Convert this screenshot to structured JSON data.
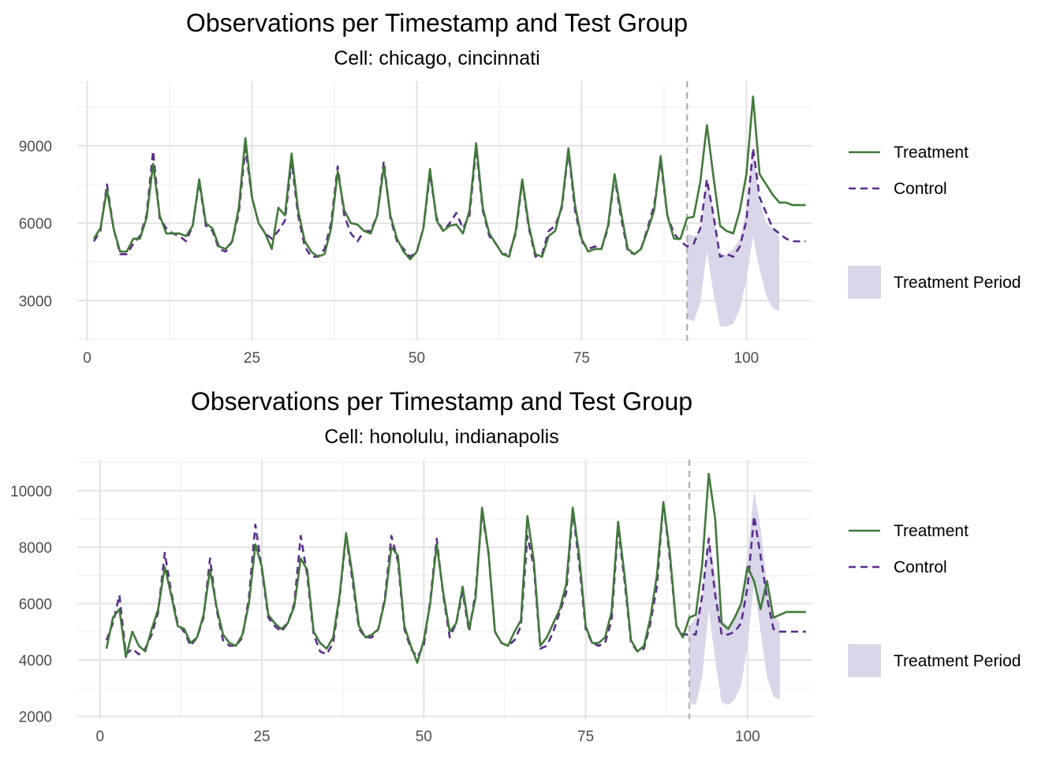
{
  "colors": {
    "treatment": "#417a3a",
    "control": "#5b2c8e",
    "band": "#d9d6e9",
    "vline": "#b3b3b3",
    "grid_major": "#e5e5e5",
    "grid_minor": "#f0f0f0"
  },
  "chart_data": [
    {
      "type": "line",
      "title": "Observations per Timestamp and Test Group",
      "subtitle": "Cell: chicago, cincinnati",
      "xlabel": "",
      "ylabel": "",
      "xlim": [
        -1.5,
        110
      ],
      "ylim": [
        1450,
        11500
      ],
      "xticks": [
        0,
        25,
        50,
        75,
        100
      ],
      "yticks": [
        3000,
        6000,
        9000
      ],
      "grid": true,
      "treatment_start": 91,
      "legend": {
        "placement": "right",
        "items": [
          {
            "label": "Treatment",
            "style": "solid"
          },
          {
            "label": "Control",
            "style": "dashed"
          },
          {
            "label": "Treatment Period",
            "style": "band"
          }
        ]
      },
      "x_start": 1,
      "series": [
        {
          "name": "Treatment",
          "values": [
            5400,
            5800,
            7300,
            5800,
            4900,
            4900,
            5400,
            5400,
            6200,
            8300,
            6300,
            5600,
            5600,
            5600,
            5500,
            5900,
            7700,
            6000,
            5800,
            5100,
            5000,
            5300,
            6600,
            9300,
            7000,
            6000,
            5600,
            5000,
            6600,
            6300,
            8700,
            6500,
            5300,
            4900,
            4700,
            4800,
            5800,
            8000,
            6500,
            6000,
            5950,
            5700,
            5600,
            6300,
            8200,
            6300,
            5400,
            4900,
            4600,
            4900,
            5800,
            8100,
            6100,
            5700,
            5900,
            5950,
            5600,
            6500,
            9100,
            6600,
            5600,
            5200,
            4800,
            4700,
            5700,
            7700,
            5900,
            4800,
            4700,
            5500,
            5700,
            6700,
            8900,
            6700,
            5400,
            4900,
            5000,
            5000,
            5900,
            7900,
            6400,
            5000,
            4800,
            5000,
            5700,
            6500,
            8600,
            6300,
            5400,
            5400,
            6200,
            6250,
            7600,
            9800,
            7800,
            5900,
            5700,
            5600,
            6500,
            7900,
            10900,
            7900,
            7500,
            7100,
            6800,
            6800,
            6700,
            6700,
            6700
          ]
        },
        {
          "name": "Control",
          "values": [
            5300,
            5700,
            7500,
            5800,
            4800,
            4800,
            5200,
            5500,
            6300,
            8800,
            6200,
            5800,
            5600,
            5500,
            5300,
            5900,
            7600,
            5900,
            5700,
            5000,
            4900,
            5300,
            6400,
            8900,
            7000,
            6000,
            5600,
            5400,
            5700,
            6100,
            8400,
            6300,
            5100,
            4700,
            4700,
            5000,
            6000,
            8200,
            6300,
            5600,
            5300,
            5700,
            5700,
            6300,
            8400,
            6200,
            5300,
            5000,
            4700,
            4900,
            5800,
            7900,
            6200,
            5700,
            6000,
            6400,
            5800,
            6300,
            8900,
            6500,
            5500,
            5200,
            4800,
            4800,
            5600,
            7600,
            5800,
            4700,
            4800,
            5700,
            5900,
            6600,
            8800,
            6500,
            5300,
            5000,
            5100,
            5000,
            5800,
            7800,
            6200,
            4900,
            4800,
            5000,
            5800,
            6700,
            8400,
            6300,
            5600,
            5300,
            5100,
            5200,
            5800,
            7700,
            6300,
            4700,
            4800,
            4700,
            5100,
            6100,
            8900,
            7000,
            6400,
            5800,
            5600,
            5400,
            5300,
            5300,
            5300
          ]
        },
        {
          "name": "Treatment Period",
          "type": "band",
          "x": [
            91,
            92,
            93,
            94,
            95,
            96,
            97,
            98,
            99,
            100,
            101,
            102,
            103,
            104,
            105
          ],
          "lower": [
            2300,
            2200,
            2900,
            4900,
            3300,
            2000,
            2000,
            2100,
            2700,
            3800,
            5500,
            4200,
            3200,
            2700,
            2600
          ],
          "upper": [
            5600,
            5500,
            5600,
            7700,
            6500,
            4700,
            4800,
            5000,
            5400,
            6500,
            8900,
            6900,
            6000,
            5800,
            5500
          ]
        }
      ]
    },
    {
      "type": "line",
      "title": "Observations per Timestamp and Test Group",
      "subtitle": "Cell: honolulu, indianapolis",
      "xlabel": "",
      "ylabel": "",
      "xlim": [
        -3.5,
        110
      ],
      "ylim": [
        1900,
        11100
      ],
      "xticks": [
        0,
        25,
        50,
        75,
        100
      ],
      "yticks": [
        2000,
        4000,
        6000,
        8000,
        10000
      ],
      "grid": true,
      "treatment_start": 91,
      "legend": {
        "placement": "right",
        "items": [
          {
            "label": "Treatment",
            "style": "solid"
          },
          {
            "label": "Control",
            "style": "dashed"
          },
          {
            "label": "Treatment Period",
            "style": "band"
          }
        ]
      },
      "x_start": 1,
      "series": [
        {
          "name": "Treatment",
          "values": [
            4400,
            5500,
            5800,
            4100,
            5000,
            4500,
            4300,
            5100,
            5800,
            7300,
            6300,
            5200,
            5100,
            4600,
            4800,
            5600,
            7200,
            5900,
            4900,
            4600,
            4500,
            4900,
            6000,
            8100,
            7300,
            5600,
            5300,
            5100,
            5300,
            5900,
            7600,
            7200,
            5000,
            4600,
            4400,
            4800,
            6300,
            8500,
            7000,
            5200,
            4800,
            4900,
            5100,
            6100,
            8000,
            7700,
            5200,
            4500,
            3900,
            4700,
            6000,
            8100,
            6400,
            5000,
            5300,
            6600,
            5100,
            6200,
            9400,
            7800,
            5000,
            4600,
            4500,
            5000,
            5400,
            9100,
            7500,
            4500,
            4800,
            5300,
            5800,
            6700,
            9400,
            7700,
            5200,
            4600,
            4600,
            4800,
            5700,
            8900,
            7000,
            4700,
            4300,
            4500,
            5500,
            7000,
            9600,
            7800,
            5200,
            4800,
            5500,
            5600,
            7400,
            10600,
            9000,
            5300,
            5100,
            5500,
            6000,
            7300,
            6800,
            5800,
            6800,
            5500,
            5600,
            5700,
            5700,
            5700,
            5700
          ]
        },
        {
          "name": "Control",
          "values": [
            4700,
            5300,
            6300,
            4200,
            4400,
            4200,
            4400,
            4900,
            5700,
            7800,
            6400,
            5300,
            5000,
            4500,
            4800,
            5500,
            7600,
            5800,
            4700,
            4500,
            4500,
            4800,
            6200,
            8800,
            7200,
            5500,
            5200,
            5000,
            5300,
            6000,
            8400,
            7000,
            4900,
            4300,
            4200,
            4600,
            6200,
            8400,
            6800,
            5100,
            4800,
            4800,
            5100,
            6200,
            8400,
            7500,
            5100,
            4400,
            4100,
            4500,
            6100,
            8300,
            6300,
            4800,
            5300,
            6400,
            5000,
            6400,
            9200,
            7800,
            5000,
            4600,
            4500,
            4700,
            5200,
            8400,
            7300,
            4400,
            4500,
            5000,
            5700,
            6400,
            9300,
            7400,
            5100,
            4600,
            4500,
            4600,
            5400,
            8700,
            6800,
            4600,
            4300,
            4400,
            5300,
            6600,
            9600,
            7600,
            5200,
            4900,
            4900,
            4900,
            6300,
            8300,
            6300,
            4900,
            4900,
            5000,
            5300,
            6600,
            9100,
            7700,
            6200,
            5100,
            5000,
            5000,
            5000,
            5000,
            5000
          ]
        },
        {
          "name": "Treatment Period",
          "type": "band",
          "x": [
            91,
            92,
            93,
            94,
            95,
            96,
            97,
            98,
            99,
            100,
            101,
            102,
            103,
            104,
            105
          ],
          "lower": [
            2500,
            2400,
            3400,
            5800,
            4000,
            2500,
            2400,
            2600,
            3100,
            4500,
            6800,
            5000,
            3400,
            2700,
            2600
          ],
          "upper": [
            5200,
            5500,
            6200,
            8500,
            7000,
            5400,
            5200,
            5500,
            6100,
            7700,
            10000,
            8700,
            6700,
            5600,
            5300
          ]
        }
      ]
    }
  ]
}
